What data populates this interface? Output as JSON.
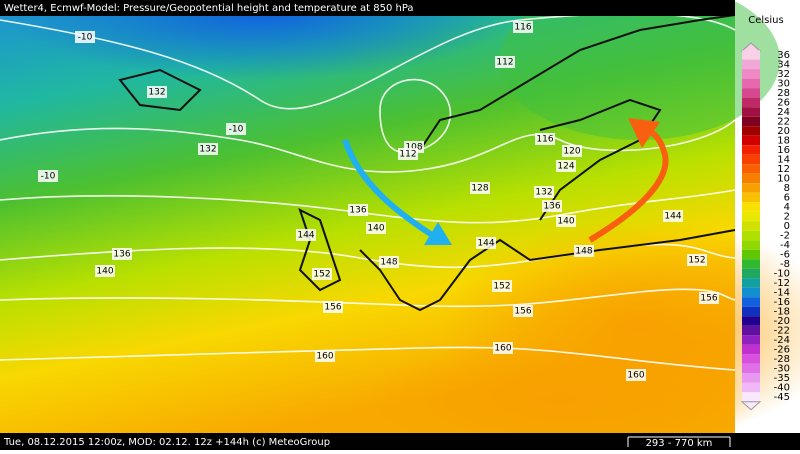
{
  "header": {
    "title": "Wetter4, Ecmwf-Model: Pressure/Geopotential height and temperature at 850 hPa"
  },
  "footer": {
    "text": "Tue, 08.12.2015 12:00z, MOD: 02.12. 12z +144h (c) MeteoGroup",
    "scale": "293 - 770 km"
  },
  "legend": {
    "unit": "Celsius",
    "labels": [
      "36",
      "34",
      "32",
      "30",
      "28",
      "26",
      "24",
      "22",
      "20",
      "18",
      "16",
      "14",
      "12",
      "10",
      "8",
      "6",
      "4",
      "2",
      "0",
      "-2",
      "-4",
      "-6",
      "-8",
      "-10",
      "-12",
      "-14",
      "-16",
      "-18",
      "-20",
      "-22",
      "-24",
      "-26",
      "-28",
      "-30",
      "-35",
      "-40",
      "-45"
    ],
    "colors": [
      "#f8d0e8",
      "#f0a8d8",
      "#f088c8",
      "#e868b0",
      "#d84890",
      "#c02868",
      "#a01040",
      "#800020",
      "#a00000",
      "#d00000",
      "#f02000",
      "#f84000",
      "#f86000",
      "#f88000",
      "#f8a000",
      "#f8c000",
      "#f8e000",
      "#e8e800",
      "#d0e000",
      "#b0e000",
      "#90d800",
      "#60c800",
      "#30b830",
      "#20a860",
      "#10a0a0",
      "#1090d0",
      "#1060e0",
      "#1030c0",
      "#200090",
      "#6010a0",
      "#9020c0",
      "#c030d0",
      "#d850e0",
      "#e070e8",
      "#e898f0",
      "#f0b8f8",
      "#f8e8fc"
    ]
  },
  "contours": {
    "labels": [
      "-10",
      "132",
      "-10",
      "132",
      "-10",
      "116",
      "112",
      "108",
      "112",
      "116",
      "120",
      "124",
      "128",
      "132",
      "136",
      "136",
      "140",
      "140",
      "144",
      "144",
      "144",
      "136",
      "140",
      "148",
      "148",
      "152",
      "152",
      "152",
      "156",
      "156",
      "156",
      "160",
      "160",
      "160"
    ]
  }
}
